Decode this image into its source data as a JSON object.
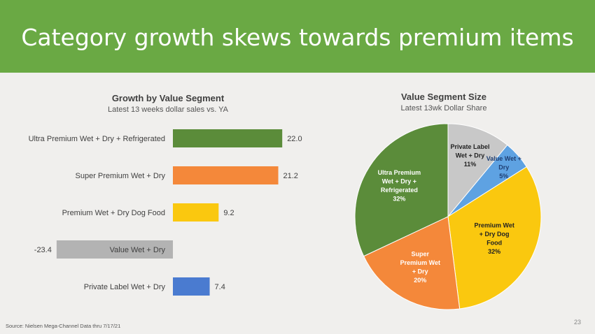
{
  "header": {
    "title": "Category growth skews towards premium items"
  },
  "bar_chart": {
    "title": "Growth by Value Segment",
    "subtitle": "Latest 13 weeks dollar sales vs. YA"
  },
  "pie_chart": {
    "title": "Value Segment Size",
    "subtitle": "Latest 13wk Dollar Share"
  },
  "footer": {
    "source": "Source:  Nielsen Mega-Channel Data thru 7/17/21",
    "page_number": "23"
  },
  "chart_data": [
    {
      "type": "bar",
      "orientation": "horizontal",
      "title": "Growth by Value Segment",
      "subtitle": "Latest 13 weeks dollar sales vs. YA",
      "categories": [
        "Ultra Premium Wet + Dry + Refrigerated",
        "Super Premium Wet + Dry",
        "Premium Wet + Dry Dog Food",
        "Value Wet + Dry",
        "Private Label Wet + Dry"
      ],
      "values": [
        22.0,
        21.2,
        9.2,
        -23.4,
        7.4
      ],
      "value_labels": [
        "22.0",
        "21.2",
        "9.2",
        "-23.4",
        "7.4"
      ],
      "colors": [
        "#5b8c3a",
        "#f4883a",
        "#fac80f",
        "#b3b3b3",
        "#4a7bd0"
      ],
      "xlim": [
        -23.4,
        22.0
      ]
    },
    {
      "type": "pie",
      "title": "Value Segment Size",
      "subtitle": "Latest 13wk Dollar Share",
      "slices": [
        {
          "label": [
            "Private Label",
            "Wet + Dry",
            "11%"
          ],
          "value": 11,
          "color": "#c8c8c8",
          "text_color": "#222222"
        },
        {
          "label": [
            "Value Wet +",
            "Dry",
            "5%"
          ],
          "value": 5,
          "color": "#5ea2e2",
          "text_color": "#1f3f73"
        },
        {
          "label": [
            "Premium Wet",
            "+ Dry Dog",
            "Food",
            "32%"
          ],
          "value": 32,
          "color": "#fac80f",
          "text_color": "#222222"
        },
        {
          "label": [
            "Super",
            "Premium Wet",
            "+ Dry",
            "20%"
          ],
          "value": 20,
          "color": "#f4883a",
          "text_color": "#ffffff"
        },
        {
          "label": [
            "Ultra Premium",
            "Wet + Dry +",
            "Refrigerated",
            "32%"
          ],
          "value": 32,
          "color": "#5b8c3a",
          "text_color": "#ffffff"
        }
      ]
    }
  ]
}
